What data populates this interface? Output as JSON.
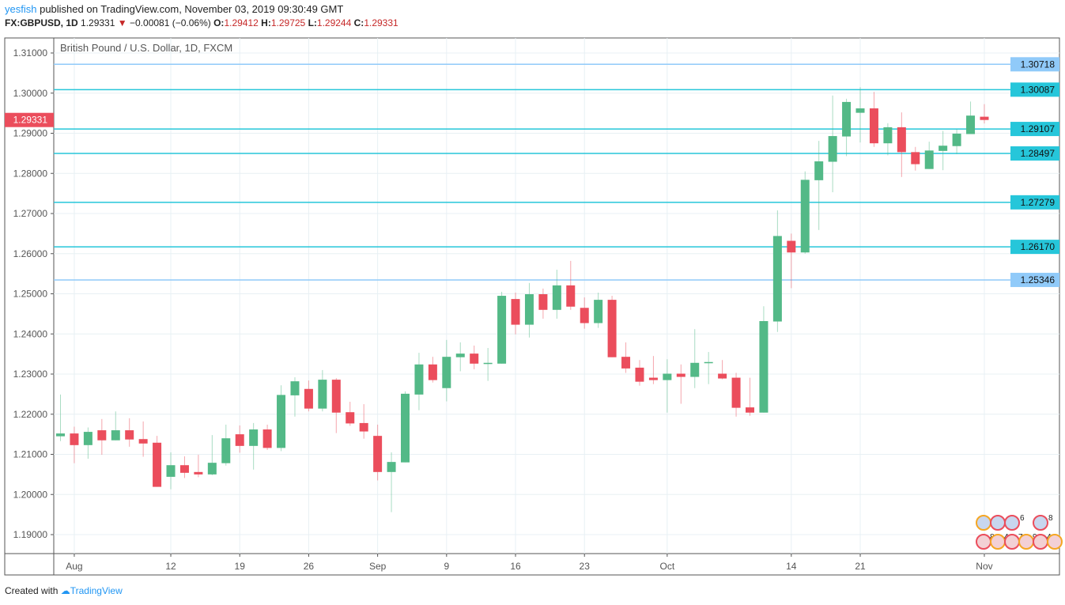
{
  "header": {
    "user": "yesfish",
    "published": "published on TradingView.com, November 03, 2019 09:30:49 GMT",
    "symbol": "FX:GBPUSD, 1D",
    "last": "1.29331",
    "change": "−0.00081 (−0.06%)",
    "o_label": "O:",
    "o": "1.29412",
    "h_label": "H:",
    "h": "1.29725",
    "l_label": "L:",
    "l": "1.29244",
    "c_label": "C:",
    "c": "1.29331"
  },
  "footer": {
    "created_with": "Created with",
    "brand": "TradingView"
  },
  "colors": {
    "up": "#53b987",
    "down": "#eb4d5c",
    "level_cyan": "#26c6da",
    "level_blue": "#90caf9",
    "last_price": "#eb4d5c"
  },
  "chart_data": {
    "type": "candlestick",
    "title": "British Pound / U.S. Dollar, 1D, FXCM",
    "ylim": [
      1.186,
      1.3138
    ],
    "yticks": [
      "1.31000",
      "1.30000",
      "1.29000",
      "1.28000",
      "1.27000",
      "1.26000",
      "1.25000",
      "1.24000",
      "1.23000",
      "1.22000",
      "1.21000",
      "1.20000",
      "1.19000"
    ],
    "xticks": [
      {
        "label": "Aug",
        "index": 1
      },
      {
        "label": "12",
        "index": 8
      },
      {
        "label": "19",
        "index": 13
      },
      {
        "label": "26",
        "index": 18
      },
      {
        "label": "Sep",
        "index": 23
      },
      {
        "label": "9",
        "index": 28
      },
      {
        "label": "16",
        "index": 33
      },
      {
        "label": "23",
        "index": 38
      },
      {
        "label": "Oct",
        "index": 44
      },
      {
        "label": "14",
        "index": 53
      },
      {
        "label": "21",
        "index": 58
      },
      {
        "label": "Nov",
        "index": 67
      }
    ],
    "levels": [
      {
        "label": "1.30718",
        "value": 1.30718,
        "style": "blue"
      },
      {
        "label": "1.30087",
        "value": 1.30087,
        "style": "cyan"
      },
      {
        "label": "1.29107",
        "value": 1.29107,
        "style": "cyan"
      },
      {
        "label": "1.28497",
        "value": 1.28497,
        "style": "cyan"
      },
      {
        "label": "1.27279",
        "value": 1.27279,
        "style": "cyan"
      },
      {
        "label": "1.26170",
        "value": 1.2617,
        "style": "cyan"
      },
      {
        "label": "1.25346",
        "value": 1.25346,
        "style": "blue"
      }
    ],
    "last_price": {
      "label": "1.29331",
      "value": 1.29331
    },
    "ohlc": [
      [
        1.2145,
        1.2249,
        1.2133,
        1.2152
      ],
      [
        1.2152,
        1.2169,
        1.2078,
        1.2123
      ],
      [
        1.2123,
        1.2167,
        1.2089,
        1.2156
      ],
      [
        1.216,
        1.2188,
        1.2099,
        1.2135
      ],
      [
        1.2135,
        1.2207,
        1.2135,
        1.216
      ],
      [
        1.216,
        1.219,
        1.2119,
        1.2137
      ],
      [
        1.2138,
        1.2182,
        1.2094,
        1.2127
      ],
      [
        1.2129,
        1.2146,
        1.2019,
        1.2019
      ],
      [
        1.2044,
        1.2105,
        1.2013,
        1.2073
      ],
      [
        1.2073,
        1.2095,
        1.2041,
        1.2054
      ],
      [
        1.2056,
        1.2099,
        1.2043,
        1.205
      ],
      [
        1.205,
        1.2148,
        1.2048,
        1.2079
      ],
      [
        1.2078,
        1.2174,
        1.2072,
        1.214
      ],
      [
        1.215,
        1.2172,
        1.2104,
        1.2121
      ],
      [
        1.2121,
        1.2178,
        1.2062,
        1.2162
      ],
      [
        1.2162,
        1.2174,
        1.2111,
        1.2116
      ],
      [
        1.2116,
        1.2272,
        1.2108,
        1.2248
      ],
      [
        1.2247,
        1.2292,
        1.2194,
        1.2282
      ],
      [
        1.2263,
        1.2284,
        1.2207,
        1.2214
      ],
      [
        1.2214,
        1.231,
        1.2207,
        1.2286
      ],
      [
        1.2286,
        1.229,
        1.2153,
        1.2204
      ],
      [
        1.2205,
        1.2231,
        1.2171,
        1.2177
      ],
      [
        1.2178,
        1.2225,
        1.2139,
        1.2157
      ],
      [
        1.2146,
        1.2174,
        1.2035,
        1.2056
      ],
      [
        1.2056,
        1.2105,
        1.1956,
        1.2081
      ],
      [
        1.208,
        1.2257,
        1.208,
        1.2251
      ],
      [
        1.2249,
        1.2353,
        1.221,
        1.2324
      ],
      [
        1.2324,
        1.2343,
        1.2279,
        1.2285
      ],
      [
        1.2265,
        1.2385,
        1.2232,
        1.2343
      ],
      [
        1.2342,
        1.2379,
        1.2307,
        1.2351
      ],
      [
        1.2351,
        1.2371,
        1.2312,
        1.2326
      ],
      [
        1.2326,
        1.2365,
        1.2283,
        1.2328
      ],
      [
        1.2326,
        1.2505,
        1.2326,
        1.2495
      ],
      [
        1.2487,
        1.2503,
        1.2399,
        1.2423
      ],
      [
        1.2423,
        1.2527,
        1.2391,
        1.2499
      ],
      [
        1.2499,
        1.2513,
        1.2438,
        1.246
      ],
      [
        1.246,
        1.256,
        1.2438,
        1.2521
      ],
      [
        1.2521,
        1.2582,
        1.246,
        1.2468
      ],
      [
        1.2465,
        1.2491,
        1.2413,
        1.2427
      ],
      [
        1.2427,
        1.2503,
        1.2415,
        1.2485
      ],
      [
        1.2485,
        1.2495,
        1.2342,
        1.2342
      ],
      [
        1.2343,
        1.2379,
        1.2303,
        1.2314
      ],
      [
        1.2316,
        1.2335,
        1.2271,
        1.2281
      ],
      [
        1.2291,
        1.2345,
        1.2275,
        1.2285
      ],
      [
        1.2285,
        1.2337,
        1.2204,
        1.2301
      ],
      [
        1.2301,
        1.2324,
        1.2226,
        1.2293
      ],
      [
        1.2293,
        1.2412,
        1.2265,
        1.2328
      ],
      [
        1.2328,
        1.2355,
        1.2275,
        1.233
      ],
      [
        1.2301,
        1.2335,
        1.2287,
        1.2289
      ],
      [
        1.2291,
        1.2303,
        1.2194,
        1.2216
      ],
      [
        1.2217,
        1.2291,
        1.2196,
        1.2204
      ],
      [
        1.2204,
        1.2469,
        1.2204,
        1.2432
      ],
      [
        1.2431,
        1.2708,
        1.2405,
        1.2644
      ],
      [
        1.2632,
        1.265,
        1.2514,
        1.2603
      ],
      [
        1.2603,
        1.2805,
        1.26,
        1.2784
      ],
      [
        1.2783,
        1.2881,
        1.2659,
        1.283
      ],
      [
        1.2829,
        1.2994,
        1.2753,
        1.2893
      ],
      [
        1.2892,
        1.2986,
        1.2843,
        1.2978
      ],
      [
        1.2951,
        1.3015,
        1.2877,
        1.2962
      ],
      [
        1.2962,
        1.3003,
        1.2866,
        1.2875
      ],
      [
        1.2875,
        1.2925,
        1.2845,
        1.2915
      ],
      [
        1.2915,
        1.2952,
        1.2791,
        1.2853
      ],
      [
        1.2853,
        1.2866,
        1.2807,
        1.2823
      ],
      [
        1.2811,
        1.2879,
        1.2811,
        1.2857
      ],
      [
        1.2856,
        1.2906,
        1.2808,
        1.2869
      ],
      [
        1.2868,
        1.291,
        1.2848,
        1.2899
      ],
      [
        1.2898,
        1.2979,
        1.2898,
        1.2944
      ],
      [
        1.29412,
        1.29725,
        1.29244,
        1.29331
      ]
    ],
    "events": {
      "gb_counts": [
        "",
        "",
        "6",
        "8"
      ],
      "us_counts": [
        "8",
        "4",
        "7",
        "9",
        "4"
      ]
    }
  }
}
